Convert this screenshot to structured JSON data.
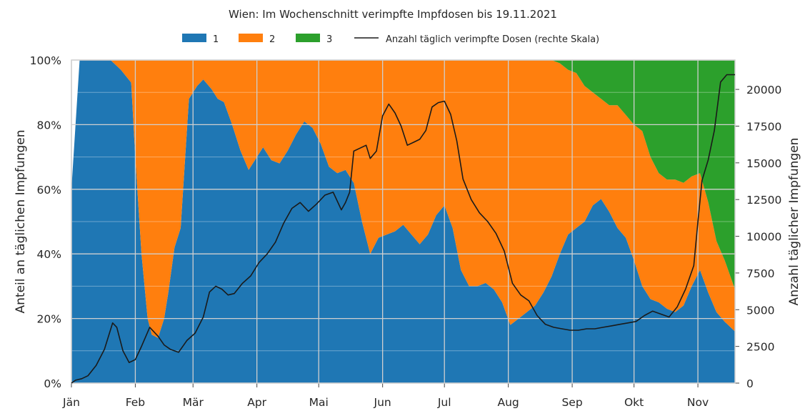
{
  "chart_data": {
    "type": "area",
    "title": "Wien: Im Wochenschnitt verimpfte Impfdosen bis 19.11.2021",
    "ylabel_left": "Anteil an täglichen Impfungen",
    "ylabel_right": "Anzahl täglicher Impfungen",
    "ylim_left": [
      0,
      100
    ],
    "ylim_right": [
      0,
      22000
    ],
    "yticks_left": [
      "0%",
      "20%",
      "40%",
      "60%",
      "80%",
      "100%"
    ],
    "yticks_right": [
      "0",
      "2500",
      "5000",
      "7500",
      "10000",
      "12500",
      "15000",
      "17500",
      "20000"
    ],
    "yticks_right_values": [
      0,
      2500,
      5000,
      7500,
      10000,
      12500,
      15000,
      17500,
      20000
    ],
    "xlim": [
      "2021-01-01",
      "2021-11-19"
    ],
    "x_tick_labels": [
      "Jän",
      "Feb",
      "Mär",
      "Apr",
      "Mai",
      "Jun",
      "Jul",
      "Aug",
      "Sep",
      "Okt",
      "Nov"
    ],
    "x_tick_dates": [
      "2021-01-01",
      "2021-02-01",
      "2021-03-01",
      "2021-04-01",
      "2021-05-01",
      "2021-06-01",
      "2021-07-01",
      "2021-08-01",
      "2021-09-01",
      "2021-10-01",
      "2021-11-01"
    ],
    "grid": true,
    "legend_placement": "top-center",
    "colors": {
      "dose1": "#1f77b4",
      "dose2": "#ff7f0e",
      "dose3": "#2ca02c",
      "line": "#1a1a1a"
    },
    "legend": [
      "1",
      "2",
      "3",
      "Anzahl täglich verimpfte Dosen (rechte Skala)"
    ],
    "shares": {
      "x": [
        "2021-01-01",
        "2021-01-05",
        "2021-01-10",
        "2021-01-15",
        "2021-01-20",
        "2021-01-25",
        "2021-01-30",
        "2021-02-01",
        "2021-02-04",
        "2021-02-07",
        "2021-02-09",
        "2021-02-12",
        "2021-02-15",
        "2021-02-17",
        "2021-02-20",
        "2021-02-23",
        "2021-02-27",
        "2021-03-03",
        "2021-03-06",
        "2021-03-10",
        "2021-03-13",
        "2021-03-16",
        "2021-03-20",
        "2021-03-24",
        "2021-03-28",
        "2021-04-01",
        "2021-04-04",
        "2021-04-08",
        "2021-04-12",
        "2021-04-16",
        "2021-04-20",
        "2021-04-24",
        "2021-04-28",
        "2021-05-02",
        "2021-05-06",
        "2021-05-10",
        "2021-05-14",
        "2021-05-18",
        "2021-05-22",
        "2021-05-26",
        "2021-05-30",
        "2021-06-03",
        "2021-06-07",
        "2021-06-11",
        "2021-06-15",
        "2021-06-19",
        "2021-06-23",
        "2021-06-27",
        "2021-07-01",
        "2021-07-05",
        "2021-07-09",
        "2021-07-13",
        "2021-07-17",
        "2021-07-21",
        "2021-07-25",
        "2021-07-29",
        "2021-08-02",
        "2021-08-06",
        "2021-08-10",
        "2021-08-14",
        "2021-08-18",
        "2021-08-22",
        "2021-08-26",
        "2021-08-30",
        "2021-09-03",
        "2021-09-07",
        "2021-09-11",
        "2021-09-15",
        "2021-09-19",
        "2021-09-23",
        "2021-09-27",
        "2021-10-01",
        "2021-10-05",
        "2021-10-09",
        "2021-10-13",
        "2021-10-17",
        "2021-10-21",
        "2021-10-25",
        "2021-10-29",
        "2021-11-02",
        "2021-11-06",
        "2021-11-10",
        "2021-11-14",
        "2021-11-19"
      ],
      "dose1": [
        60,
        100,
        100,
        100,
        100,
        97,
        93,
        70,
        40,
        20,
        15,
        14,
        20,
        28,
        42,
        48,
        88,
        92,
        94,
        91,
        88,
        87,
        80,
        72,
        66,
        70,
        73,
        69,
        68,
        72,
        77,
        81,
        79,
        74,
        67,
        65,
        66,
        62,
        50,
        40,
        45,
        46,
        47,
        49,
        46,
        43,
        46,
        52,
        55,
        48,
        35,
        30,
        30,
        31,
        29,
        25,
        18,
        20,
        22,
        24,
        28,
        33,
        40,
        46,
        48,
        50,
        55,
        57,
        53,
        48,
        45,
        38,
        30,
        26,
        25,
        23,
        22,
        24,
        30,
        35,
        28,
        22,
        19,
        16
      ],
      "dose2": [
        0,
        0,
        0,
        0,
        0,
        3,
        7,
        30,
        60,
        80,
        85,
        86,
        80,
        72,
        58,
        52,
        12,
        8,
        6,
        9,
        12,
        13,
        20,
        28,
        34,
        30,
        27,
        31,
        32,
        28,
        23,
        19,
        21,
        26,
        33,
        35,
        34,
        38,
        50,
        60,
        55,
        54,
        53,
        51,
        54,
        57,
        54,
        48,
        45,
        52,
        65,
        70,
        70,
        69,
        71,
        75,
        82,
        80,
        78,
        76,
        72,
        67,
        59,
        51,
        48,
        42,
        35,
        31,
        33,
        38,
        38,
        42,
        48,
        44,
        40,
        40,
        41,
        38,
        34,
        30,
        28,
        22,
        19,
        13
      ],
      "dose3": [
        0,
        0,
        0,
        0,
        0,
        0,
        0,
        0,
        0,
        0,
        0,
        0,
        0,
        0,
        0,
        0,
        0,
        0,
        0,
        0,
        0,
        0,
        0,
        0,
        0,
        0,
        0,
        0,
        0,
        0,
        0,
        0,
        0,
        0,
        0,
        0,
        0,
        0,
        0,
        0,
        0,
        0,
        0,
        0,
        0,
        0,
        0,
        0,
        0,
        0,
        0,
        0,
        0,
        0,
        0,
        0,
        0,
        0,
        0,
        0,
        0,
        0,
        1,
        3,
        4,
        8,
        10,
        12,
        14,
        14,
        17,
        20,
        22,
        30,
        35,
        37,
        37,
        38,
        36,
        35,
        44,
        56,
        62,
        71
      ]
    },
    "daily_doses": {
      "x": [
        "2021-01-01",
        "2021-01-03",
        "2021-01-06",
        "2021-01-09",
        "2021-01-13",
        "2021-01-17",
        "2021-01-21",
        "2021-01-23",
        "2021-01-26",
        "2021-01-29",
        "2021-02-01",
        "2021-02-04",
        "2021-02-08",
        "2021-02-12",
        "2021-02-15",
        "2021-02-18",
        "2021-02-22",
        "2021-02-26",
        "2021-03-02",
        "2021-03-06",
        "2021-03-09",
        "2021-03-12",
        "2021-03-15",
        "2021-03-18",
        "2021-03-21",
        "2021-03-25",
        "2021-03-29",
        "2021-04-02",
        "2021-04-06",
        "2021-04-10",
        "2021-04-14",
        "2021-04-18",
        "2021-04-22",
        "2021-04-26",
        "2021-04-30",
        "2021-05-04",
        "2021-05-08",
        "2021-05-12",
        "2021-05-14",
        "2021-05-16",
        "2021-05-18",
        "2021-05-21",
        "2021-05-24",
        "2021-05-26",
        "2021-05-29",
        "2021-06-01",
        "2021-06-04",
        "2021-06-07",
        "2021-06-10",
        "2021-06-13",
        "2021-06-16",
        "2021-06-19",
        "2021-06-22",
        "2021-06-25",
        "2021-06-28",
        "2021-07-01",
        "2021-07-04",
        "2021-07-07",
        "2021-07-10",
        "2021-07-14",
        "2021-07-18",
        "2021-07-22",
        "2021-07-26",
        "2021-07-30",
        "2021-08-03",
        "2021-08-07",
        "2021-08-11",
        "2021-08-15",
        "2021-08-19",
        "2021-08-23",
        "2021-08-27",
        "2021-08-31",
        "2021-09-04",
        "2021-09-08",
        "2021-09-12",
        "2021-09-16",
        "2021-09-20",
        "2021-09-24",
        "2021-09-28",
        "2021-10-02",
        "2021-10-06",
        "2021-10-10",
        "2021-10-14",
        "2021-10-18",
        "2021-10-22",
        "2021-10-26",
        "2021-10-30",
        "2021-11-01",
        "2021-11-03",
        "2021-11-06",
        "2021-11-09",
        "2021-11-12",
        "2021-11-15",
        "2021-11-19"
      ],
      "values": [
        0,
        200,
        300,
        500,
        1200,
        2300,
        4100,
        3800,
        2200,
        1400,
        1600,
        2500,
        3800,
        3200,
        2600,
        2300,
        2100,
        2900,
        3400,
        4500,
        6200,
        6600,
        6400,
        6000,
        6100,
        6800,
        7300,
        8200,
        8800,
        9600,
        10900,
        11900,
        12300,
        11700,
        12200,
        12800,
        13000,
        11800,
        12300,
        13000,
        15800,
        16000,
        16200,
        15300,
        15800,
        18200,
        19000,
        18400,
        17500,
        16200,
        16400,
        16600,
        17200,
        18800,
        19100,
        19200,
        18300,
        16500,
        13900,
        12500,
        11600,
        11000,
        10200,
        9000,
        6800,
        6000,
        5600,
        4600,
        4000,
        3800,
        3700,
        3600,
        3600,
        3700,
        3700,
        3800,
        3900,
        4000,
        4100,
        4200,
        4600,
        4900,
        4700,
        4500,
        5200,
        6400,
        8000,
        11000,
        13800,
        15200,
        17200,
        20500,
        21000,
        21000
      ]
    }
  }
}
